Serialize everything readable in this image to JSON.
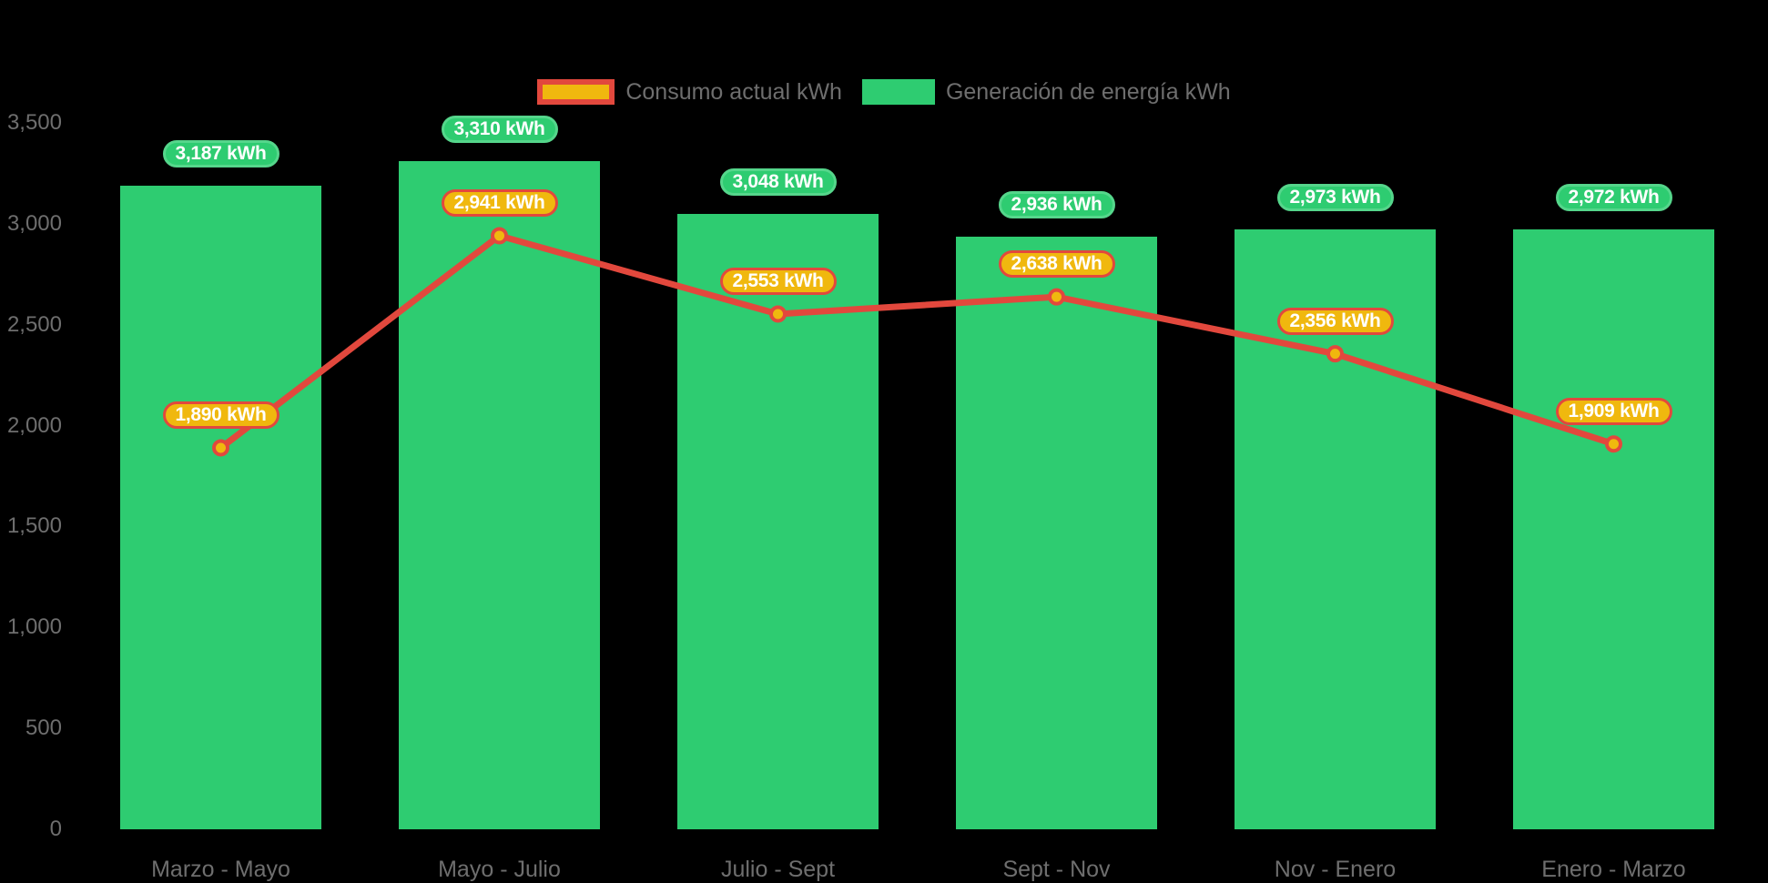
{
  "chart_data": {
    "type": "bar-line-combo",
    "categories": [
      "Marzo - Mayo",
      "Mayo - Julio",
      "Julio - Sept",
      "Sept - Nov",
      "Nov - Enero",
      "Enero - Marzo"
    ],
    "series": [
      {
        "name": "Consumo actual kWh",
        "type": "line",
        "color": "#e2483d",
        "marker_color": "#f0b80e",
        "values": [
          1890,
          2941,
          2553,
          2638,
          2356,
          1909
        ]
      },
      {
        "name": "Generación de energía kWh",
        "type": "bar",
        "color": "#2ecc71",
        "values": [
          3187,
          3310,
          3048,
          2936,
          2973,
          2972
        ]
      }
    ],
    "data_labels": {
      "suffix": " kWh",
      "bar_label_values": [
        "3,187 kWh",
        "3,310 kWh",
        "3,048 kWh",
        "2,936 kWh",
        "2,973 kWh",
        "2,972 kWh"
      ],
      "line_label_values": [
        "1,890 kWh",
        "2,941 kWh",
        "2,553 kWh",
        "2,638 kWh",
        "2,356 kWh",
        "1,909 kWh"
      ]
    },
    "yaxis": {
      "min": 0,
      "max": 3500,
      "tick_step": 500,
      "tick_labels": [
        "0",
        "500",
        "1,000",
        "1,500",
        "2,000",
        "2,500",
        "3,000",
        "3,500"
      ]
    },
    "xlabel": "",
    "ylabel": "",
    "title": "",
    "legend_position": "top",
    "grid": false,
    "background": "#000000"
  },
  "colors": {
    "bar_fill": "#2ecc71",
    "bar_badge_border": "#55d68b",
    "line_stroke": "#e2483d",
    "marker_fill": "#f0b80e",
    "axis_text": "#6e6e6e",
    "badge_text": "#ffffff"
  }
}
